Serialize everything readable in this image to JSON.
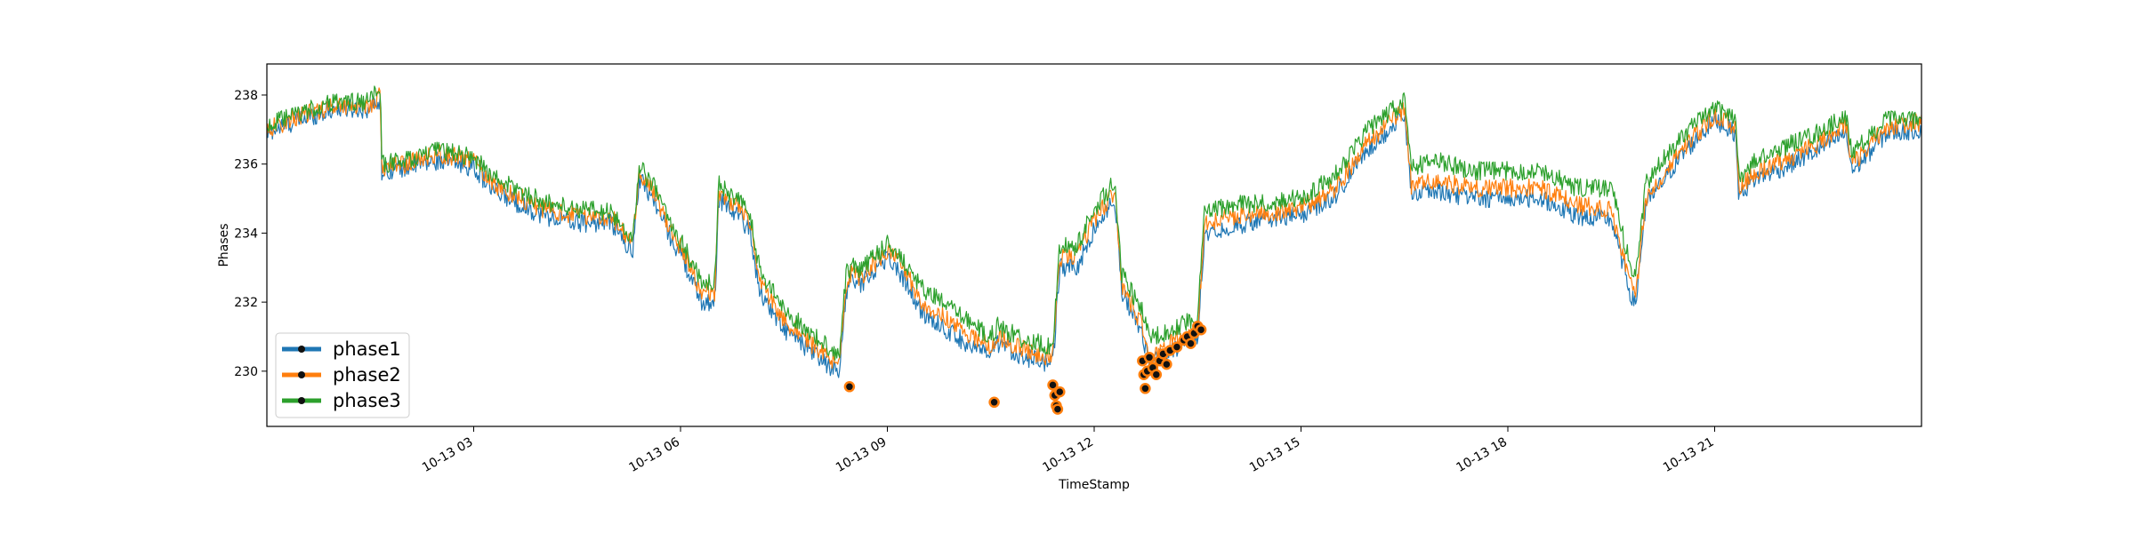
{
  "chart_data": {
    "type": "line",
    "xlabel": "TimeStamp",
    "ylabel": "Phases",
    "x_unit": "hours since 10-13 00:00",
    "xlim": [
      0,
      24
    ],
    "ylim": [
      228.4,
      238.9
    ],
    "x_ticks": [
      {
        "value": 3,
        "label": "10-13 03"
      },
      {
        "value": 6,
        "label": "10-13 06"
      },
      {
        "value": 9,
        "label": "10-13 09"
      },
      {
        "value": 12,
        "label": "10-13 12"
      },
      {
        "value": 15,
        "label": "10-13 15"
      },
      {
        "value": 18,
        "label": "10-13 18"
      },
      {
        "value": 21,
        "label": "10-13 21"
      }
    ],
    "y_ticks": [
      230,
      232,
      234,
      236,
      238
    ],
    "grid": false,
    "legend_position": "lower-left",
    "x": [
      0,
      0.5,
      1,
      1.5,
      1.65,
      1.66,
      2,
      2.5,
      3,
      3.3,
      3.6,
      4,
      4.5,
      5,
      5.3,
      5.4,
      5.6,
      5.9,
      6,
      6.3,
      6.5,
      6.55,
      6.8,
      7,
      7.15,
      7.5,
      8,
      8.3,
      8.4,
      8.5,
      8.6,
      9,
      9.2,
      9.5,
      10,
      10.5,
      10.6,
      11,
      11.4,
      11.5,
      11.75,
      12,
      12.3,
      12.4,
      12.7,
      12.8,
      13.2,
      13.5,
      13.6,
      14,
      14.5,
      15,
      15.5,
      16,
      16.5,
      16.6,
      17,
      17.5,
      18,
      18.5,
      19,
      19.5,
      19.8,
      19.85,
      20,
      20.5,
      21,
      21.3,
      21.35,
      21.6,
      22,
      22.5,
      22.9,
      23,
      23.5,
      24
    ],
    "series": [
      {
        "name": "phase1",
        "color": "#1f77b4",
        "values": [
          236.9,
          237.3,
          237.6,
          237.6,
          237.9,
          235.8,
          235.9,
          236.1,
          235.9,
          235.2,
          234.9,
          234.5,
          234.3,
          234.3,
          233.4,
          235.6,
          235.0,
          233.7,
          233.4,
          232.0,
          232.0,
          235.0,
          234.6,
          234.1,
          232.3,
          231.2,
          230.4,
          229.9,
          232.3,
          232.7,
          232.5,
          233.3,
          232.8,
          231.7,
          231.0,
          230.4,
          230.8,
          230.4,
          230.2,
          233.0,
          233.0,
          234.1,
          235.0,
          232.3,
          231.1,
          230.2,
          230.7,
          231.0,
          234.0,
          234.2,
          234.4,
          234.5,
          235.1,
          236.5,
          237.4,
          235.2,
          235.2,
          235.0,
          235.0,
          235.0,
          234.5,
          234.4,
          232.1,
          231.9,
          234.8,
          236.2,
          237.3,
          236.9,
          235.1,
          235.6,
          235.9,
          236.4,
          236.9,
          235.8,
          236.9,
          237.0
        ]
      },
      {
        "name": "phase2",
        "color": "#ff7f0e",
        "values": [
          237.0,
          237.4,
          237.7,
          237.7,
          238.0,
          235.9,
          236.0,
          236.3,
          236.1,
          235.4,
          235.1,
          234.7,
          234.5,
          234.5,
          233.6,
          235.8,
          235.2,
          233.9,
          233.6,
          232.3,
          232.3,
          235.2,
          234.8,
          234.4,
          232.6,
          231.5,
          230.6,
          230.2,
          232.5,
          232.9,
          232.7,
          233.5,
          233.1,
          232.0,
          231.3,
          230.7,
          231.0,
          230.6,
          230.4,
          233.3,
          233.3,
          234.4,
          235.2,
          232.5,
          231.3,
          230.4,
          230.9,
          231.2,
          234.3,
          234.5,
          234.6,
          234.7,
          235.3,
          236.7,
          237.6,
          235.4,
          235.5,
          235.3,
          235.3,
          235.3,
          234.8,
          234.7,
          232.4,
          232.1,
          235.0,
          236.4,
          237.4,
          237.1,
          235.3,
          235.8,
          236.1,
          236.6,
          237.1,
          236.0,
          237.1,
          237.2
        ]
      },
      {
        "name": "phase3",
        "color": "#2ca02c",
        "values": [
          237.1,
          237.5,
          237.8,
          237.8,
          238.3,
          236.0,
          236.1,
          236.4,
          236.2,
          235.6,
          235.3,
          234.9,
          234.7,
          234.6,
          233.8,
          235.9,
          235.4,
          234.1,
          233.8,
          232.6,
          232.6,
          235.4,
          235.0,
          234.6,
          232.9,
          231.8,
          230.9,
          230.5,
          232.8,
          233.1,
          232.9,
          233.7,
          233.3,
          232.4,
          231.7,
          231.0,
          231.3,
          230.9,
          230.7,
          233.6,
          233.6,
          234.7,
          235.5,
          232.8,
          231.7,
          230.9,
          231.3,
          231.6,
          234.6,
          234.8,
          234.9,
          235.0,
          235.7,
          237.1,
          237.8,
          235.9,
          236.1,
          235.8,
          235.8,
          235.8,
          235.3,
          235.3,
          232.9,
          232.7,
          235.4,
          236.8,
          237.6,
          237.4,
          235.6,
          236.1,
          236.5,
          236.9,
          237.4,
          236.3,
          237.3,
          237.3
        ]
      }
    ],
    "markers": {
      "color": "#ff7f0e",
      "points": [
        [
          8.45,
          229.55
        ],
        [
          10.55,
          229.1
        ],
        [
          11.4,
          229.6
        ],
        [
          11.43,
          229.3
        ],
        [
          11.45,
          229.0
        ],
        [
          11.47,
          228.9
        ],
        [
          11.5,
          229.4
        ],
        [
          12.7,
          230.3
        ],
        [
          12.72,
          229.9
        ],
        [
          12.74,
          229.5
        ],
        [
          12.77,
          230.0
        ],
        [
          12.8,
          230.4
        ],
        [
          12.85,
          230.1
        ],
        [
          12.9,
          229.9
        ],
        [
          12.95,
          230.3
        ],
        [
          13.0,
          230.5
        ],
        [
          13.05,
          230.2
        ],
        [
          13.1,
          230.6
        ],
        [
          13.2,
          230.7
        ],
        [
          13.3,
          230.9
        ],
        [
          13.35,
          231.0
        ],
        [
          13.4,
          230.8
        ],
        [
          13.45,
          231.1
        ],
        [
          13.5,
          231.3
        ],
        [
          13.55,
          231.2
        ]
      ]
    }
  }
}
